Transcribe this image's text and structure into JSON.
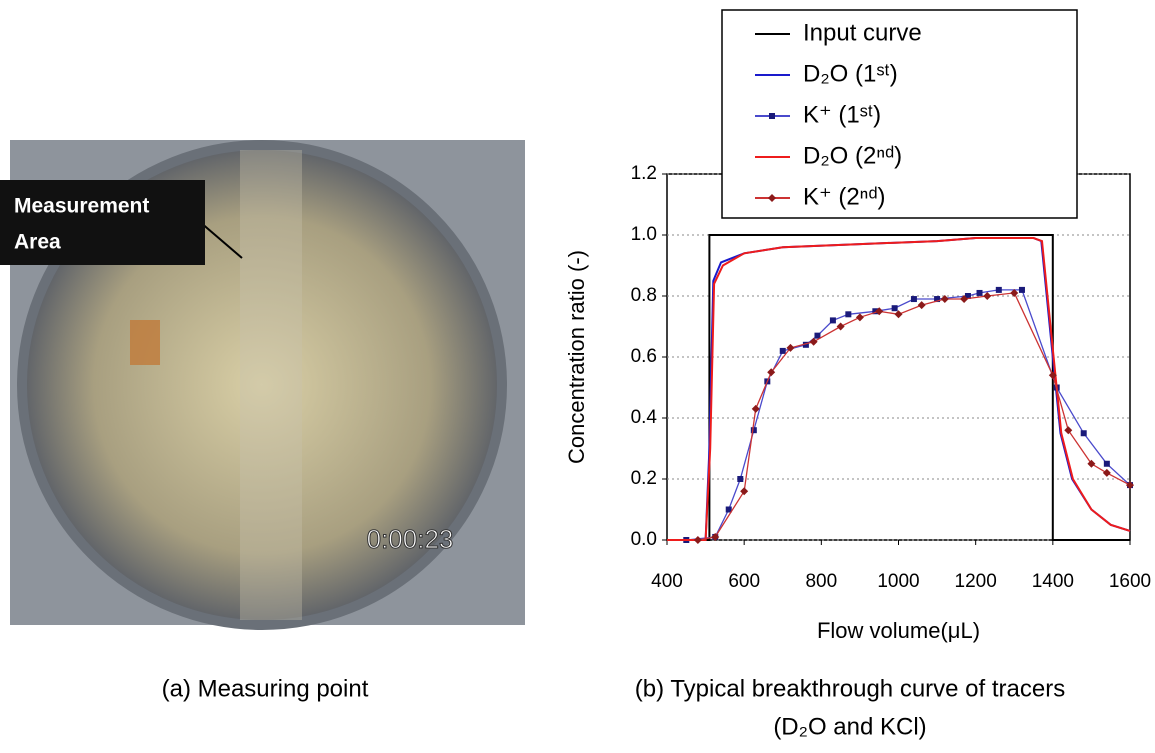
{
  "photo": {
    "label": [
      "Measurement",
      "Area"
    ],
    "timestamp": "0:00:23",
    "caption": "(a) Measuring point"
  },
  "chart_data": {
    "type": "line",
    "caption": [
      "(b) Typical breakthrough curve of tracers",
      "(D₂O and KCl)"
    ],
    "x_label": "Flow volume(μL)",
    "y_label": "Concentration ratio (-)",
    "xlim": [
      400,
      1600
    ],
    "ylim": [
      0,
      1.2
    ],
    "xticks": [
      400,
      600,
      800,
      1000,
      1200,
      1400,
      1600
    ],
    "yticks": [
      {
        "value": 0,
        "label": "0.0"
      },
      0.2,
      0.4,
      0.6,
      0.8,
      {
        "value": 1,
        "label": "1.0"
      },
      1.2
    ],
    "grid": true,
    "series": [
      {
        "name": "Input curve",
        "color": "#000000",
        "marker": "none",
        "x": [
          400,
          510,
          510,
          1400,
          1400,
          1600
        ],
        "values": [
          0,
          0,
          1,
          1,
          0,
          0
        ]
      },
      {
        "name": "D₂O (1ˢᵗ)",
        "color": "#1a1acc",
        "marker": "none",
        "x": [
          400,
          500,
          510,
          520,
          540,
          600,
          700,
          900,
          1100,
          1200,
          1350,
          1370,
          1400,
          1420,
          1450,
          1500,
          1550,
          1600
        ],
        "values": [
          0,
          0,
          0.3,
          0.85,
          0.91,
          0.94,
          0.96,
          0.97,
          0.98,
          0.99,
          0.99,
          0.98,
          0.6,
          0.35,
          0.2,
          0.1,
          0.05,
          0.03
        ]
      },
      {
        "name": "K⁺ (1ˢᵗ)",
        "color": "#4a4acc",
        "marker": "square",
        "marker_color": "#1a1a7a",
        "x": [
          450,
          525,
          560,
          590,
          625,
          660,
          700,
          760,
          790,
          830,
          870,
          940,
          990,
          1040,
          1100,
          1180,
          1210,
          1260,
          1320,
          1410,
          1480,
          1540,
          1600
        ],
        "values": [
          0,
          0.01,
          0.1,
          0.2,
          0.36,
          0.52,
          0.62,
          0.64,
          0.67,
          0.72,
          0.74,
          0.75,
          0.76,
          0.79,
          0.79,
          0.8,
          0.81,
          0.82,
          0.82,
          0.5,
          0.35,
          0.25,
          0.18
        ]
      },
      {
        "name": "D₂O (2ⁿᵈ)",
        "color": "#ee1c1c",
        "marker": "none",
        "x": [
          400,
          500,
          512,
          522,
          545,
          600,
          700,
          900,
          1100,
          1200,
          1350,
          1372,
          1402,
          1422,
          1452,
          1500,
          1550,
          1600
        ],
        "values": [
          0,
          0,
          0.3,
          0.84,
          0.9,
          0.94,
          0.96,
          0.97,
          0.98,
          0.99,
          0.99,
          0.98,
          0.6,
          0.35,
          0.2,
          0.1,
          0.05,
          0.03
        ]
      },
      {
        "name": "K⁺ (2ⁿᵈ)",
        "color": "#cc3333",
        "marker": "diamond",
        "marker_color": "#8b1a1a",
        "x": [
          480,
          525,
          600,
          630,
          670,
          720,
          780,
          850,
          900,
          950,
          1000,
          1060,
          1120,
          1170,
          1230,
          1300,
          1400,
          1440,
          1500,
          1540,
          1600
        ],
        "values": [
          0,
          0.01,
          0.16,
          0.43,
          0.55,
          0.63,
          0.65,
          0.7,
          0.73,
          0.75,
          0.74,
          0.77,
          0.79,
          0.79,
          0.8,
          0.81,
          0.54,
          0.36,
          0.25,
          0.22,
          0.18
        ]
      }
    ]
  }
}
